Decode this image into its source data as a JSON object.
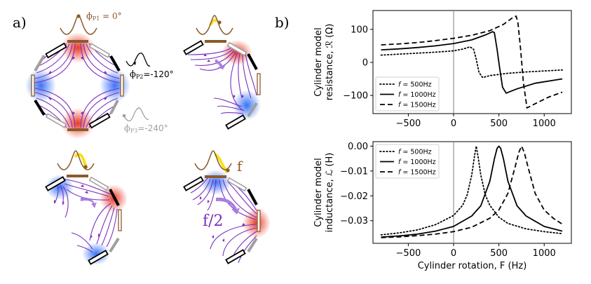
{
  "figure": {
    "panel_a_label": "a)",
    "panel_b_label": "b)"
  },
  "diagram": {
    "phase_p1": "ϕ",
    "phase_p1_sub": "P1",
    "phase_p1_value": " = 0°",
    "phase_p2": "ϕ",
    "phase_p2_sub": "P2",
    "phase_p2_value": "=-120°",
    "phase_p3": "ϕ",
    "phase_p3_sub": "P3",
    "phase_p3_value": "=-240°",
    "label_f": "f",
    "label_half_f": "f/2",
    "colors": {
      "electrode_p1": "#8b5a2b",
      "electrode_p2": "#000000",
      "electrode_p3": "#a0a0a0",
      "field_lines": "#7b2fbe",
      "positive_pole": "#e8301c",
      "negative_pole": "#2f6cf5",
      "highlight": "#f5e11a",
      "rotation_arrow": "#a87ee0"
    }
  },
  "chart_data": [
    {
      "type": "line",
      "title": "",
      "xlabel": "",
      "ylabel": "Cylinder model resistance, ℛ (Ω)",
      "ylabel_line1": "Cylinder model",
      "ylabel_line2": "resistance, ℛ (Ω)",
      "xlim": [
        -890,
        1300
      ],
      "ylim": [
        -155,
        157
      ],
      "xticks": [
        -500,
        0,
        500,
        1000
      ],
      "xtick_labels": [
        "−500",
        "0",
        "500",
        "1000"
      ],
      "yticks": [
        100,
        0,
        -100
      ],
      "ytick_labels": [
        "100",
        "0",
        "−100"
      ],
      "vline_x": 0,
      "grid": false,
      "legend_position": "lower-left",
      "series": [
        {
          "name": "f = 500Hz",
          "legend_prefix": "f",
          "legend_suffix": " = 500Hz",
          "style": "dotted",
          "x": [
            -800,
            -600,
            -400,
            -200,
            0,
            100,
            180,
            220,
            250,
            280,
            320,
            400,
            600,
            800,
            1000,
            1200
          ],
          "y": [
            22,
            25,
            28,
            31,
            35,
            40,
            47,
            40,
            10,
            -30,
            -46,
            -40,
            -33,
            -29,
            -26,
            -23
          ]
        },
        {
          "name": "f = 1000Hz",
          "legend_prefix": "f",
          "legend_suffix": " = 1000Hz",
          "style": "solid",
          "x": [
            -800,
            -600,
            -400,
            -200,
            0,
            200,
            350,
            430,
            450,
            480,
            510,
            540,
            580,
            700,
            900,
            1200
          ],
          "y": [
            38,
            41,
            45,
            50,
            57,
            68,
            83,
            93,
            90,
            40,
            -20,
            -75,
            -93,
            -80,
            -63,
            -50
          ],
          "y_note": "resonance near F = 500 Hz"
        },
        {
          "name": "f = 1500Hz",
          "legend_prefix": "f",
          "legend_suffix": " = 1500Hz",
          "style": "dashed",
          "x": [
            -800,
            -600,
            -400,
            -200,
            0,
            200,
            400,
            550,
            650,
            690,
            710,
            740,
            770,
            810,
            900,
            1050,
            1200
          ],
          "y": [
            53,
            56,
            60,
            66,
            73,
            82,
            96,
            115,
            135,
            140,
            120,
            40,
            -60,
            -138,
            -125,
            -105,
            -90
          ]
        }
      ]
    },
    {
      "type": "line",
      "title": "",
      "xlabel": "Cylinder rotation, F (Hz)",
      "ylabel": "Cylinder model inductance, ℒ (H)",
      "ylabel_line1": "Cylinder model",
      "ylabel_line2": "inductance, ℒ (H)",
      "xlim": [
        -890,
        1300
      ],
      "ylim": [
        -0.0391,
        0.0018
      ],
      "xticks": [
        -500,
        0,
        500,
        1000
      ],
      "xtick_labels": [
        "−500",
        "0",
        "500",
        "1000"
      ],
      "yticks": [
        0.0,
        -0.01,
        -0.02,
        -0.03
      ],
      "ytick_labels": [
        "0.00",
        "−0.01",
        "−0.02",
        "−0.03"
      ],
      "vline_x": 0,
      "grid": false,
      "legend_position": "upper-left",
      "series": [
        {
          "name": "f = 500Hz",
          "legend_prefix": "f",
          "legend_suffix": " = 500Hz",
          "style": "dotted",
          "peak_x": 250,
          "x": [
            -800,
            -600,
            -400,
            -200,
            0,
            100,
            150,
            200,
            230,
            250,
            270,
            300,
            350,
            400,
            500,
            600,
            800,
            1000,
            1200
          ],
          "y": [
            -0.0357,
            -0.0349,
            -0.0337,
            -0.0316,
            -0.0279,
            -0.0238,
            -0.0196,
            -0.0116,
            -0.0042,
            0.0,
            -0.0042,
            -0.0116,
            -0.0196,
            -0.0238,
            -0.0286,
            -0.0311,
            -0.0333,
            -0.0344,
            -0.0352
          ]
        },
        {
          "name": "f = 1000Hz",
          "legend_prefix": "f",
          "legend_suffix": " = 1000Hz",
          "style": "solid",
          "peak_x": 500,
          "x": [
            -800,
            -600,
            -400,
            -200,
            0,
            200,
            300,
            400,
            450,
            480,
            500,
            520,
            550,
            600,
            700,
            800,
            1000,
            1200
          ],
          "y": [
            -0.0366,
            -0.0361,
            -0.0354,
            -0.0342,
            -0.0323,
            -0.0281,
            -0.024,
            -0.0141,
            -0.0051,
            -0.0009,
            0.0,
            -0.0009,
            -0.0051,
            -0.0141,
            -0.024,
            -0.0281,
            -0.0323,
            -0.0342
          ]
        },
        {
          "name": "f = 1500Hz",
          "legend_prefix": "f",
          "legend_suffix": " = 1500Hz",
          "style": "dashed",
          "peak_x": 750,
          "x": [
            -800,
            -600,
            -400,
            -200,
            0,
            200,
            400,
            500,
            600,
            680,
            720,
            750,
            780,
            820,
            900,
            1000,
            1100,
            1200
          ],
          "y": [
            -0.0368,
            -0.0365,
            -0.036,
            -0.0354,
            -0.0344,
            -0.0326,
            -0.029,
            -0.0257,
            -0.019,
            -0.0082,
            -0.0025,
            0.0,
            -0.0025,
            -0.0082,
            -0.019,
            -0.0257,
            -0.029,
            -0.0314
          ]
        }
      ]
    }
  ]
}
